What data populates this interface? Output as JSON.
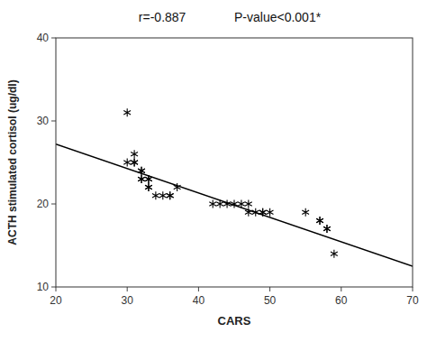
{
  "chart_data": {
    "type": "scatter",
    "annotations": [
      "r=-0.887",
      "P-value<0.001*"
    ],
    "xlabel": "CARS",
    "ylabel": "ACTH stimulated cortisol (ug/dl)",
    "series": [
      {
        "type": "scatter",
        "marker": "asterisk",
        "color": "#000000",
        "x": [
          30,
          30,
          31,
          31,
          31,
          32,
          32,
          32,
          32,
          33,
          33,
          33,
          33,
          34,
          35,
          36,
          36,
          37,
          42,
          43,
          44,
          45,
          46,
          47,
          47,
          48,
          49,
          49,
          50,
          55,
          57,
          57,
          58,
          58,
          59
        ],
        "values": [
          31,
          25,
          26,
          25,
          25,
          24,
          24,
          23,
          23,
          23,
          23,
          22,
          22,
          21,
          21,
          21,
          21,
          22,
          20,
          20,
          20,
          20,
          20,
          20,
          19,
          19,
          19,
          19,
          19,
          19,
          18,
          18,
          17,
          17,
          14
        ]
      },
      {
        "type": "line",
        "color": "#000000",
        "x": [
          20,
          70
        ],
        "values": [
          27.2,
          12.5
        ]
      }
    ],
    "xlim": [
      20,
      70
    ],
    "ylim": [
      10,
      40
    ],
    "xticks": [
      20,
      30,
      40,
      50,
      60,
      70
    ],
    "yticks": [
      10,
      20,
      30,
      40
    ],
    "grid": false
  }
}
